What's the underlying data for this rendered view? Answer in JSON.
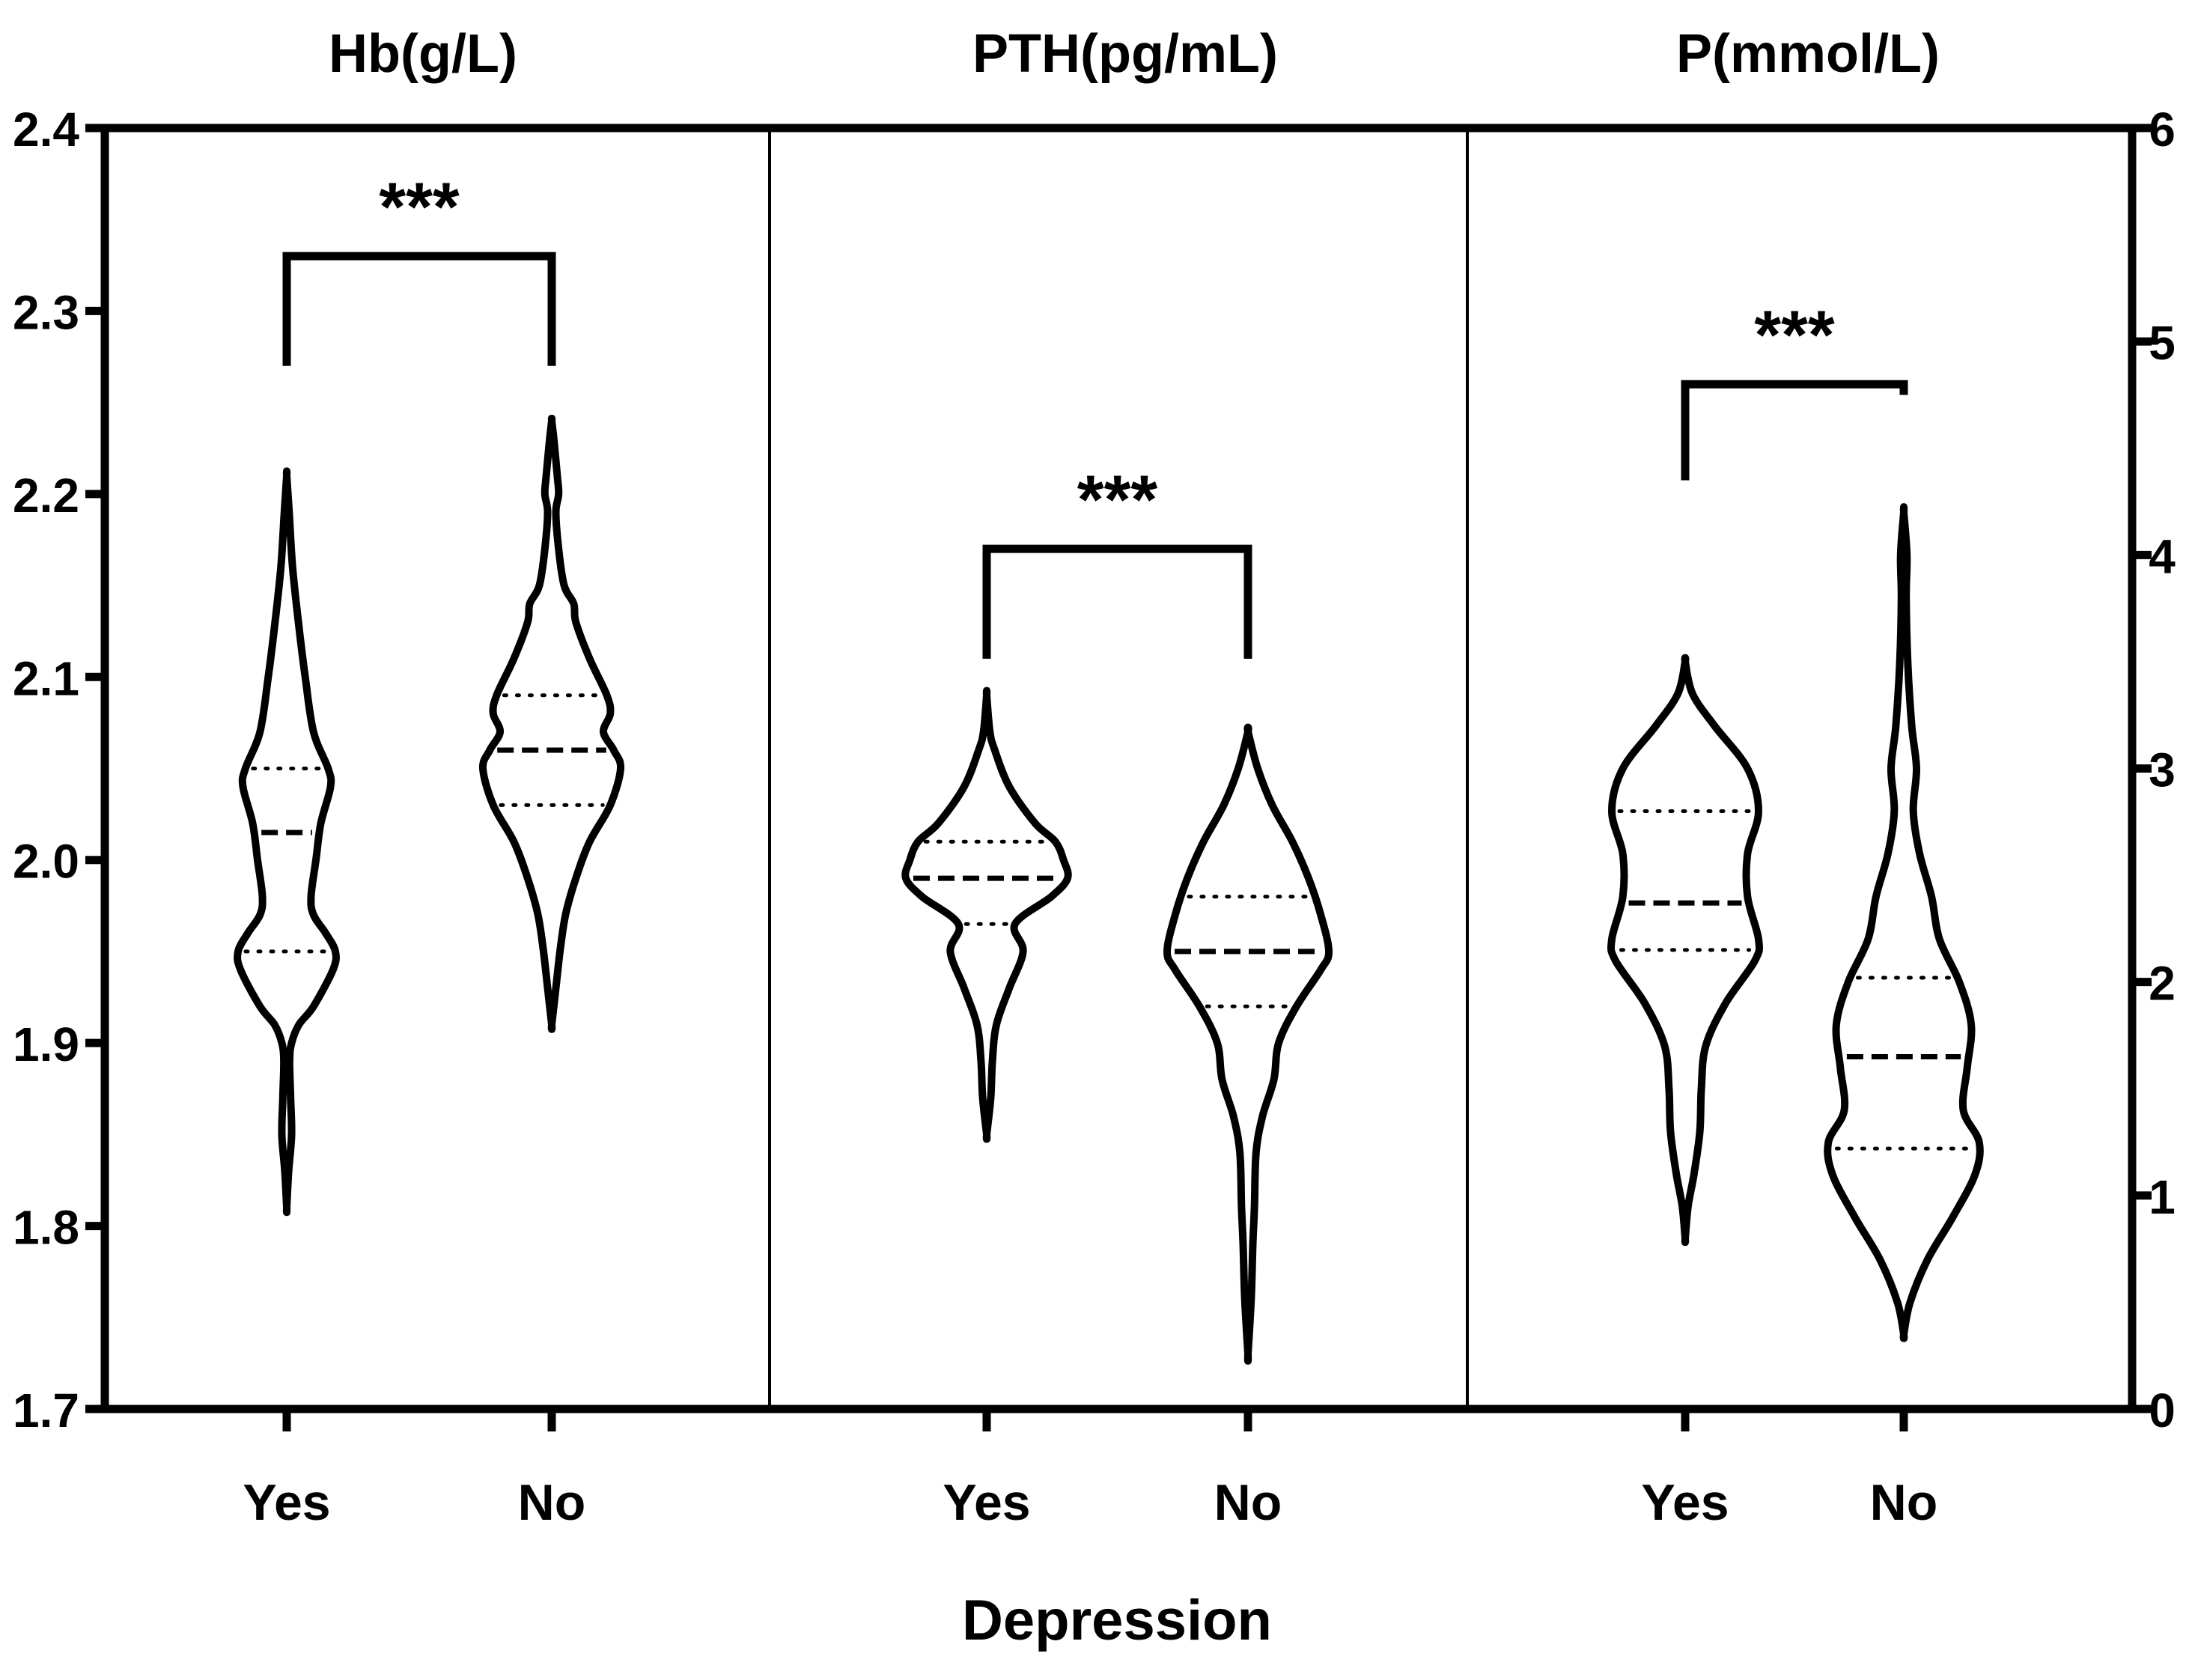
{
  "chart_data": {
    "type": "violin",
    "xlabel": "Depression",
    "categories": [
      "Yes",
      "No"
    ],
    "left_axis": {
      "ylim": [
        1.7,
        2.4
      ],
      "ticks": [
        "1.7",
        "1.8",
        "1.9",
        "2.0",
        "2.1",
        "2.2",
        "2.3",
        "2.4"
      ]
    },
    "right_axis": {
      "ylim": [
        0,
        6
      ],
      "ticks": [
        "0",
        "1",
        "2",
        "3",
        "4",
        "5",
        "6"
      ]
    },
    "panels": [
      {
        "title": "Hb(g/L)",
        "significance": "***",
        "bracket_top": 2.33,
        "bracket_left_end": 2.27,
        "bracket_right_end": 2.27,
        "groups": [
          {
            "name": "Yes",
            "median": 2.015,
            "q1": 1.95,
            "q3": 2.05,
            "profile": [
              [
                1.81,
                0.0
              ],
              [
                1.83,
                0.04
              ],
              [
                1.85,
                0.1
              ],
              [
                1.87,
                0.08
              ],
              [
                1.89,
                0.06
              ],
              [
                1.9,
                0.1
              ],
              [
                1.91,
                0.25
              ],
              [
                1.92,
                0.55
              ],
              [
                1.94,
                0.95
              ],
              [
                1.95,
                1.0
              ],
              [
                1.96,
                0.8
              ],
              [
                1.97,
                0.55
              ],
              [
                1.98,
                0.5
              ],
              [
                2.0,
                0.6
              ],
              [
                2.02,
                0.7
              ],
              [
                2.04,
                0.9
              ],
              [
                2.05,
                0.85
              ],
              [
                2.07,
                0.55
              ],
              [
                2.1,
                0.38
              ],
              [
                2.13,
                0.24
              ],
              [
                2.16,
                0.12
              ],
              [
                2.19,
                0.05
              ],
              [
                2.21,
                0.0
              ]
            ]
          },
          {
            "name": "No",
            "median": 2.06,
            "q1": 2.03,
            "q3": 2.09,
            "profile": [
              [
                1.91,
                0.0
              ],
              [
                1.93,
                0.06
              ],
              [
                1.95,
                0.12
              ],
              [
                1.97,
                0.2
              ],
              [
                1.99,
                0.35
              ],
              [
                2.01,
                0.55
              ],
              [
                2.03,
                0.85
              ],
              [
                2.05,
                1.0
              ],
              [
                2.06,
                0.9
              ],
              [
                2.07,
                0.75
              ],
              [
                2.08,
                0.85
              ],
              [
                2.09,
                0.8
              ],
              [
                2.11,
                0.55
              ],
              [
                2.13,
                0.35
              ],
              [
                2.14,
                0.32
              ],
              [
                2.15,
                0.18
              ],
              [
                2.17,
                0.1
              ],
              [
                2.19,
                0.06
              ],
              [
                2.2,
                0.1
              ],
              [
                2.21,
                0.08
              ],
              [
                2.23,
                0.03
              ],
              [
                2.24,
                0.0
              ]
            ]
          }
        ]
      },
      {
        "title": "PTH(pg/mL)",
        "significance": "***",
        "bracket_top": 2.17,
        "bracket_left_end": 2.11,
        "bracket_right_end": 2.11,
        "groups": [
          {
            "name": "Yes",
            "median": 1.99,
            "q1": 1.965,
            "q3": 2.01,
            "profile": [
              [
                1.85,
                0.0
              ],
              [
                1.87,
                0.05
              ],
              [
                1.89,
                0.07
              ],
              [
                1.91,
                0.12
              ],
              [
                1.93,
                0.28
              ],
              [
                1.95,
                0.45
              ],
              [
                1.965,
                0.35
              ],
              [
                1.98,
                0.8
              ],
              [
                1.99,
                1.0
              ],
              [
                2.0,
                0.95
              ],
              [
                2.01,
                0.85
              ],
              [
                2.02,
                0.6
              ],
              [
                2.04,
                0.28
              ],
              [
                2.06,
                0.1
              ],
              [
                2.07,
                0.04
              ],
              [
                2.09,
                0.0
              ]
            ]
          },
          {
            "name": "No",
            "median": 1.95,
            "q1": 1.92,
            "q3": 1.98,
            "profile": [
              [
                1.73,
                0.0
              ],
              [
                1.76,
                0.04
              ],
              [
                1.79,
                0.06
              ],
              [
                1.81,
                0.08
              ],
              [
                1.84,
                0.1
              ],
              [
                1.86,
                0.18
              ],
              [
                1.88,
                0.32
              ],
              [
                1.9,
                0.38
              ],
              [
                1.92,
                0.6
              ],
              [
                1.94,
                0.9
              ],
              [
                1.95,
                1.0
              ],
              [
                1.97,
                0.9
              ],
              [
                1.99,
                0.75
              ],
              [
                2.01,
                0.55
              ],
              [
                2.03,
                0.3
              ],
              [
                2.05,
                0.12
              ],
              [
                2.07,
                0.0
              ]
            ]
          }
        ]
      },
      {
        "title": "P(mmol/L)",
        "significance": "***",
        "bracket_top": 4.8,
        "bracket_left_end": 4.35,
        "bracket_right_end": 4.75,
        "groups": [
          {
            "name": "Yes",
            "median": 2.37,
            "q1": 2.15,
            "q3": 2.8,
            "profile": [
              [
                0.8,
                0.0
              ],
              [
                0.95,
                0.04
              ],
              [
                1.1,
                0.12
              ],
              [
                1.3,
                0.2
              ],
              [
                1.5,
                0.22
              ],
              [
                1.7,
                0.28
              ],
              [
                1.9,
                0.55
              ],
              [
                2.1,
                0.95
              ],
              [
                2.2,
                1.0
              ],
              [
                2.4,
                0.85
              ],
              [
                2.6,
                0.85
              ],
              [
                2.8,
                1.0
              ],
              [
                3.0,
                0.85
              ],
              [
                3.2,
                0.4
              ],
              [
                3.35,
                0.1
              ],
              [
                3.5,
                0.0
              ]
            ]
          },
          {
            "name": "No",
            "median": 1.65,
            "q1": 1.22,
            "q3": 2.02,
            "profile": [
              [
                0.35,
                0.0
              ],
              [
                0.5,
                0.08
              ],
              [
                0.7,
                0.3
              ],
              [
                0.9,
                0.62
              ],
              [
                1.1,
                0.9
              ],
              [
                1.25,
                0.95
              ],
              [
                1.4,
                0.75
              ],
              [
                1.6,
                0.8
              ],
              [
                1.8,
                0.85
              ],
              [
                2.0,
                0.7
              ],
              [
                2.2,
                0.45
              ],
              [
                2.4,
                0.35
              ],
              [
                2.6,
                0.2
              ],
              [
                2.8,
                0.12
              ],
              [
                3.0,
                0.16
              ],
              [
                3.2,
                0.1
              ],
              [
                3.5,
                0.05
              ],
              [
                3.8,
                0.03
              ],
              [
                4.0,
                0.04
              ],
              [
                4.2,
                0.0
              ]
            ]
          }
        ]
      }
    ]
  }
}
